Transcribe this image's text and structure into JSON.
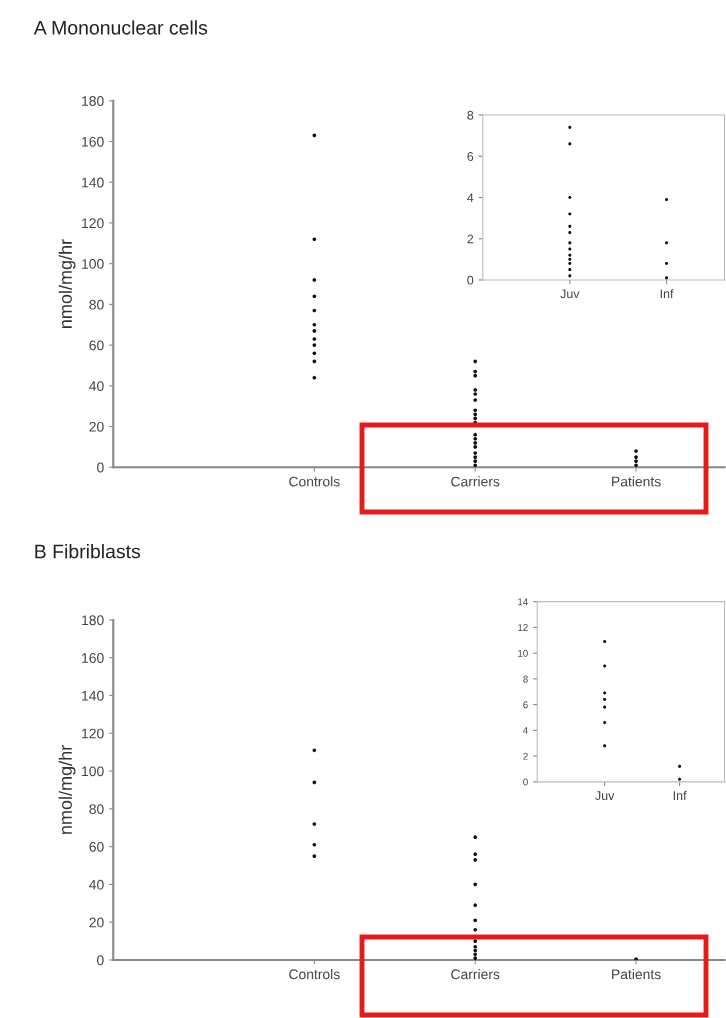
{
  "chart_data": [
    {
      "type": "scatter",
      "title": "A Mononuclear cells",
      "ylabel": "nmol/mg/hr",
      "categories": [
        "Controls",
        "Carriers",
        "Patients"
      ],
      "marker": "circle",
      "ylim": [
        0,
        180
      ],
      "yticks": [
        0,
        20,
        40,
        60,
        80,
        100,
        120,
        140,
        160,
        180
      ],
      "grid": false,
      "series": [
        {
          "color": "#111111",
          "x": [
            "Controls",
            "Controls",
            "Controls",
            "Controls",
            "Controls",
            "Controls",
            "Controls",
            "Controls",
            "Controls",
            "Controls",
            "Controls",
            "Controls"
          ],
          "values": [
            163,
            112,
            92,
            84,
            77,
            70,
            67,
            63,
            60,
            56,
            52,
            44
          ]
        },
        {
          "color": "#111111",
          "x": [
            "Carriers",
            "Carriers",
            "Carriers",
            "Carriers",
            "Carriers",
            "Carriers",
            "Carriers",
            "Carriers",
            "Carriers",
            "Carriers",
            "Carriers",
            "Carriers",
            "Carriers",
            "Carriers",
            "Carriers",
            "Carriers",
            "Carriers",
            "Carriers"
          ],
          "values": [
            52,
            47,
            45,
            38,
            36,
            33,
            28,
            26,
            24,
            22,
            16,
            14,
            12,
            10,
            7,
            5,
            3,
            1
          ]
        },
        {
          "color": "#111111",
          "x": [
            "Patients",
            "Patients",
            "Patients",
            "Patients"
          ],
          "values": [
            8,
            5,
            3,
            1
          ]
        }
      ]
    },
    {
      "type": "scatter",
      "categories": [
        "Juv",
        "Inf"
      ],
      "marker": "circle",
      "ylim": [
        0,
        8
      ],
      "yticks": [
        0,
        2,
        4,
        6,
        8
      ],
      "grid": false,
      "series": [
        {
          "color": "#111111",
          "x": [
            "Juv",
            "Juv",
            "Juv",
            "Juv",
            "Juv",
            "Juv",
            "Juv",
            "Juv",
            "Juv",
            "Juv",
            "Juv",
            "Juv",
            "Juv"
          ],
          "values": [
            7.4,
            6.6,
            4,
            3.2,
            2.6,
            2.3,
            1.8,
            1.5,
            1.2,
            1,
            0.8,
            0.5,
            0.2
          ]
        },
        {
          "color": "#111111",
          "x": [
            "Inf",
            "Inf",
            "Inf",
            "Inf"
          ],
          "values": [
            3.9,
            1.8,
            0.8,
            0.1
          ]
        }
      ]
    },
    {
      "type": "scatter",
      "title": "B Fibriblasts",
      "ylabel": "nmol/mg/hr",
      "categories": [
        "Controls",
        "Carriers",
        "Patients"
      ],
      "marker": "circle",
      "ylim": [
        0,
        180
      ],
      "yticks": [
        0,
        20,
        40,
        60,
        80,
        100,
        120,
        140,
        160,
        180
      ],
      "grid": false,
      "series": [
        {
          "color": "#111111",
          "x": [
            "Controls",
            "Controls",
            "Controls",
            "Controls",
            "Controls"
          ],
          "values": [
            111,
            94,
            72,
            61,
            55
          ]
        },
        {
          "color": "#111111",
          "x": [
            "Carriers",
            "Carriers",
            "Carriers",
            "Carriers",
            "Carriers",
            "Carriers",
            "Carriers",
            "Carriers",
            "Carriers",
            "Carriers",
            "Carriers",
            "Carriers"
          ],
          "values": [
            65,
            56,
            53,
            40,
            29,
            21,
            16,
            10,
            7,
            5,
            3,
            1
          ]
        },
        {
          "color": "#111111",
          "x": [
            "Patients"
          ],
          "values": [
            0.5
          ]
        }
      ]
    },
    {
      "type": "scatter",
      "categories": [
        "Juv",
        "Inf"
      ],
      "marker": "circle",
      "ylim": [
        0,
        14
      ],
      "yticks": [
        0,
        2,
        4,
        6,
        8,
        10,
        12,
        14
      ],
      "grid": false,
      "series": [
        {
          "color": "#111111",
          "x": [
            "Juv",
            "Juv",
            "Juv",
            "Juv",
            "Juv",
            "Juv",
            "Juv"
          ],
          "values": [
            10.9,
            9,
            6.9,
            6.4,
            5.8,
            4.6,
            2.8
          ]
        },
        {
          "color": "#111111",
          "x": [
            "Inf",
            "Inf"
          ],
          "values": [
            1.2,
            0.2
          ]
        }
      ]
    }
  ]
}
